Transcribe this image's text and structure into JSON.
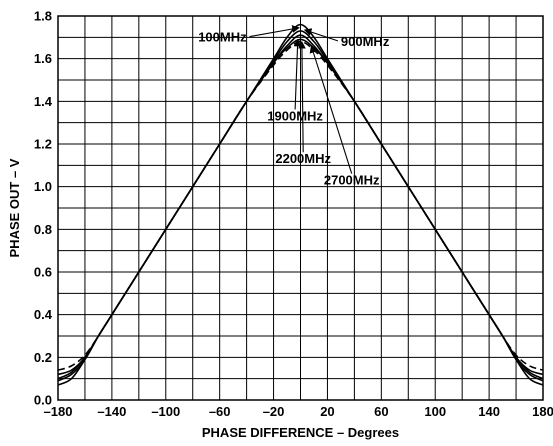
{
  "chart_data": {
    "type": "line",
    "title": "",
    "xlabel": "PHASE DIFFERENCE – Degrees",
    "ylabel": "PHASE OUT – V",
    "xlim": [
      -180,
      180
    ],
    "ylim": [
      0.0,
      1.8
    ],
    "grid": true,
    "x_ticks": [
      -180,
      -140,
      -100,
      -60,
      -20,
      20,
      60,
      100,
      140,
      180
    ],
    "x_tick_labels": [
      "–180",
      "–140",
      "–100",
      "–60",
      "–20",
      "20",
      "60",
      "100",
      "140",
      "180"
    ],
    "y_ticks": [
      0.0,
      0.2,
      0.4,
      0.6,
      0.8,
      1.0,
      1.2,
      1.4,
      1.6,
      1.8
    ],
    "y_tick_labels": [
      "0.0",
      "0.2",
      "0.4",
      "0.6",
      "0.8",
      "1.0",
      "1.2",
      "1.4",
      "1.6",
      "1.8"
    ],
    "x": [
      -180,
      -170,
      -160,
      -150,
      -140,
      -120,
      -100,
      -80,
      -60,
      -40,
      -20,
      -10,
      0,
      10,
      20,
      40,
      60,
      80,
      100,
      120,
      140,
      150,
      160,
      170,
      180
    ],
    "series": [
      {
        "name": "100MHz",
        "values": [
          0.07,
          0.1,
          0.19,
          0.3,
          0.4,
          0.6,
          0.8,
          1.0,
          1.2,
          1.4,
          1.6,
          1.7,
          1.76,
          1.7,
          1.6,
          1.4,
          1.2,
          1.0,
          0.8,
          0.6,
          0.4,
          0.3,
          0.19,
          0.1,
          0.07
        ]
      },
      {
        "name": "900MHz",
        "values": [
          0.09,
          0.12,
          0.19,
          0.3,
          0.4,
          0.6,
          0.8,
          1.0,
          1.2,
          1.4,
          1.59,
          1.68,
          1.73,
          1.68,
          1.59,
          1.4,
          1.2,
          1.0,
          0.8,
          0.6,
          0.4,
          0.3,
          0.19,
          0.12,
          0.09
        ]
      },
      {
        "name": "1900MHz",
        "values": [
          0.1,
          0.13,
          0.2,
          0.3,
          0.4,
          0.6,
          0.8,
          1.0,
          1.2,
          1.4,
          1.58,
          1.66,
          1.71,
          1.66,
          1.58,
          1.4,
          1.2,
          1.0,
          0.8,
          0.6,
          0.4,
          0.3,
          0.2,
          0.13,
          0.1
        ]
      },
      {
        "name": "2200MHz",
        "values": [
          0.12,
          0.14,
          0.2,
          0.3,
          0.4,
          0.6,
          0.8,
          1.0,
          1.2,
          1.4,
          1.58,
          1.65,
          1.69,
          1.65,
          1.58,
          1.4,
          1.2,
          1.0,
          0.8,
          0.6,
          0.4,
          0.3,
          0.2,
          0.14,
          0.12
        ]
      },
      {
        "name": "2700MHz",
        "values": [
          0.14,
          0.16,
          0.21,
          0.3,
          0.4,
          0.6,
          0.8,
          1.0,
          1.2,
          1.4,
          1.57,
          1.64,
          1.68,
          1.64,
          1.57,
          1.4,
          1.2,
          1.0,
          0.8,
          0.6,
          0.4,
          0.3,
          0.21,
          0.16,
          0.14
        ]
      }
    ],
    "series_styles": [
      {
        "color": "#000000",
        "dash": "solid"
      },
      {
        "color": "#000000",
        "dash": "solid"
      },
      {
        "color": "#000000",
        "dash": "solid"
      },
      {
        "color": "#000000",
        "dash": "solid"
      },
      {
        "color": "#000000",
        "dash": "dashed"
      }
    ],
    "annotations": [
      {
        "text": "100MHz",
        "at": [
          -40,
          1.68
        ],
        "anchor": "end",
        "arrow_to": [
          -1,
          1.745
        ]
      },
      {
        "text": "900MHz",
        "at": [
          30,
          1.66
        ],
        "anchor": "start",
        "arrow_to": [
          3,
          1.735
        ]
      },
      {
        "text": "1900MHz",
        "at": [
          -4,
          1.31
        ],
        "anchor": "middle",
        "arrow_to": [
          -2,
          1.69
        ]
      },
      {
        "text": "2200MHz",
        "at": [
          2,
          1.11
        ],
        "anchor": "middle",
        "arrow_to": [
          1,
          1.68
        ]
      },
      {
        "text": "2700MHz",
        "at": [
          38,
          1.01
        ],
        "anchor": "middle",
        "arrow_to": [
          8,
          1.66
        ]
      }
    ]
  }
}
